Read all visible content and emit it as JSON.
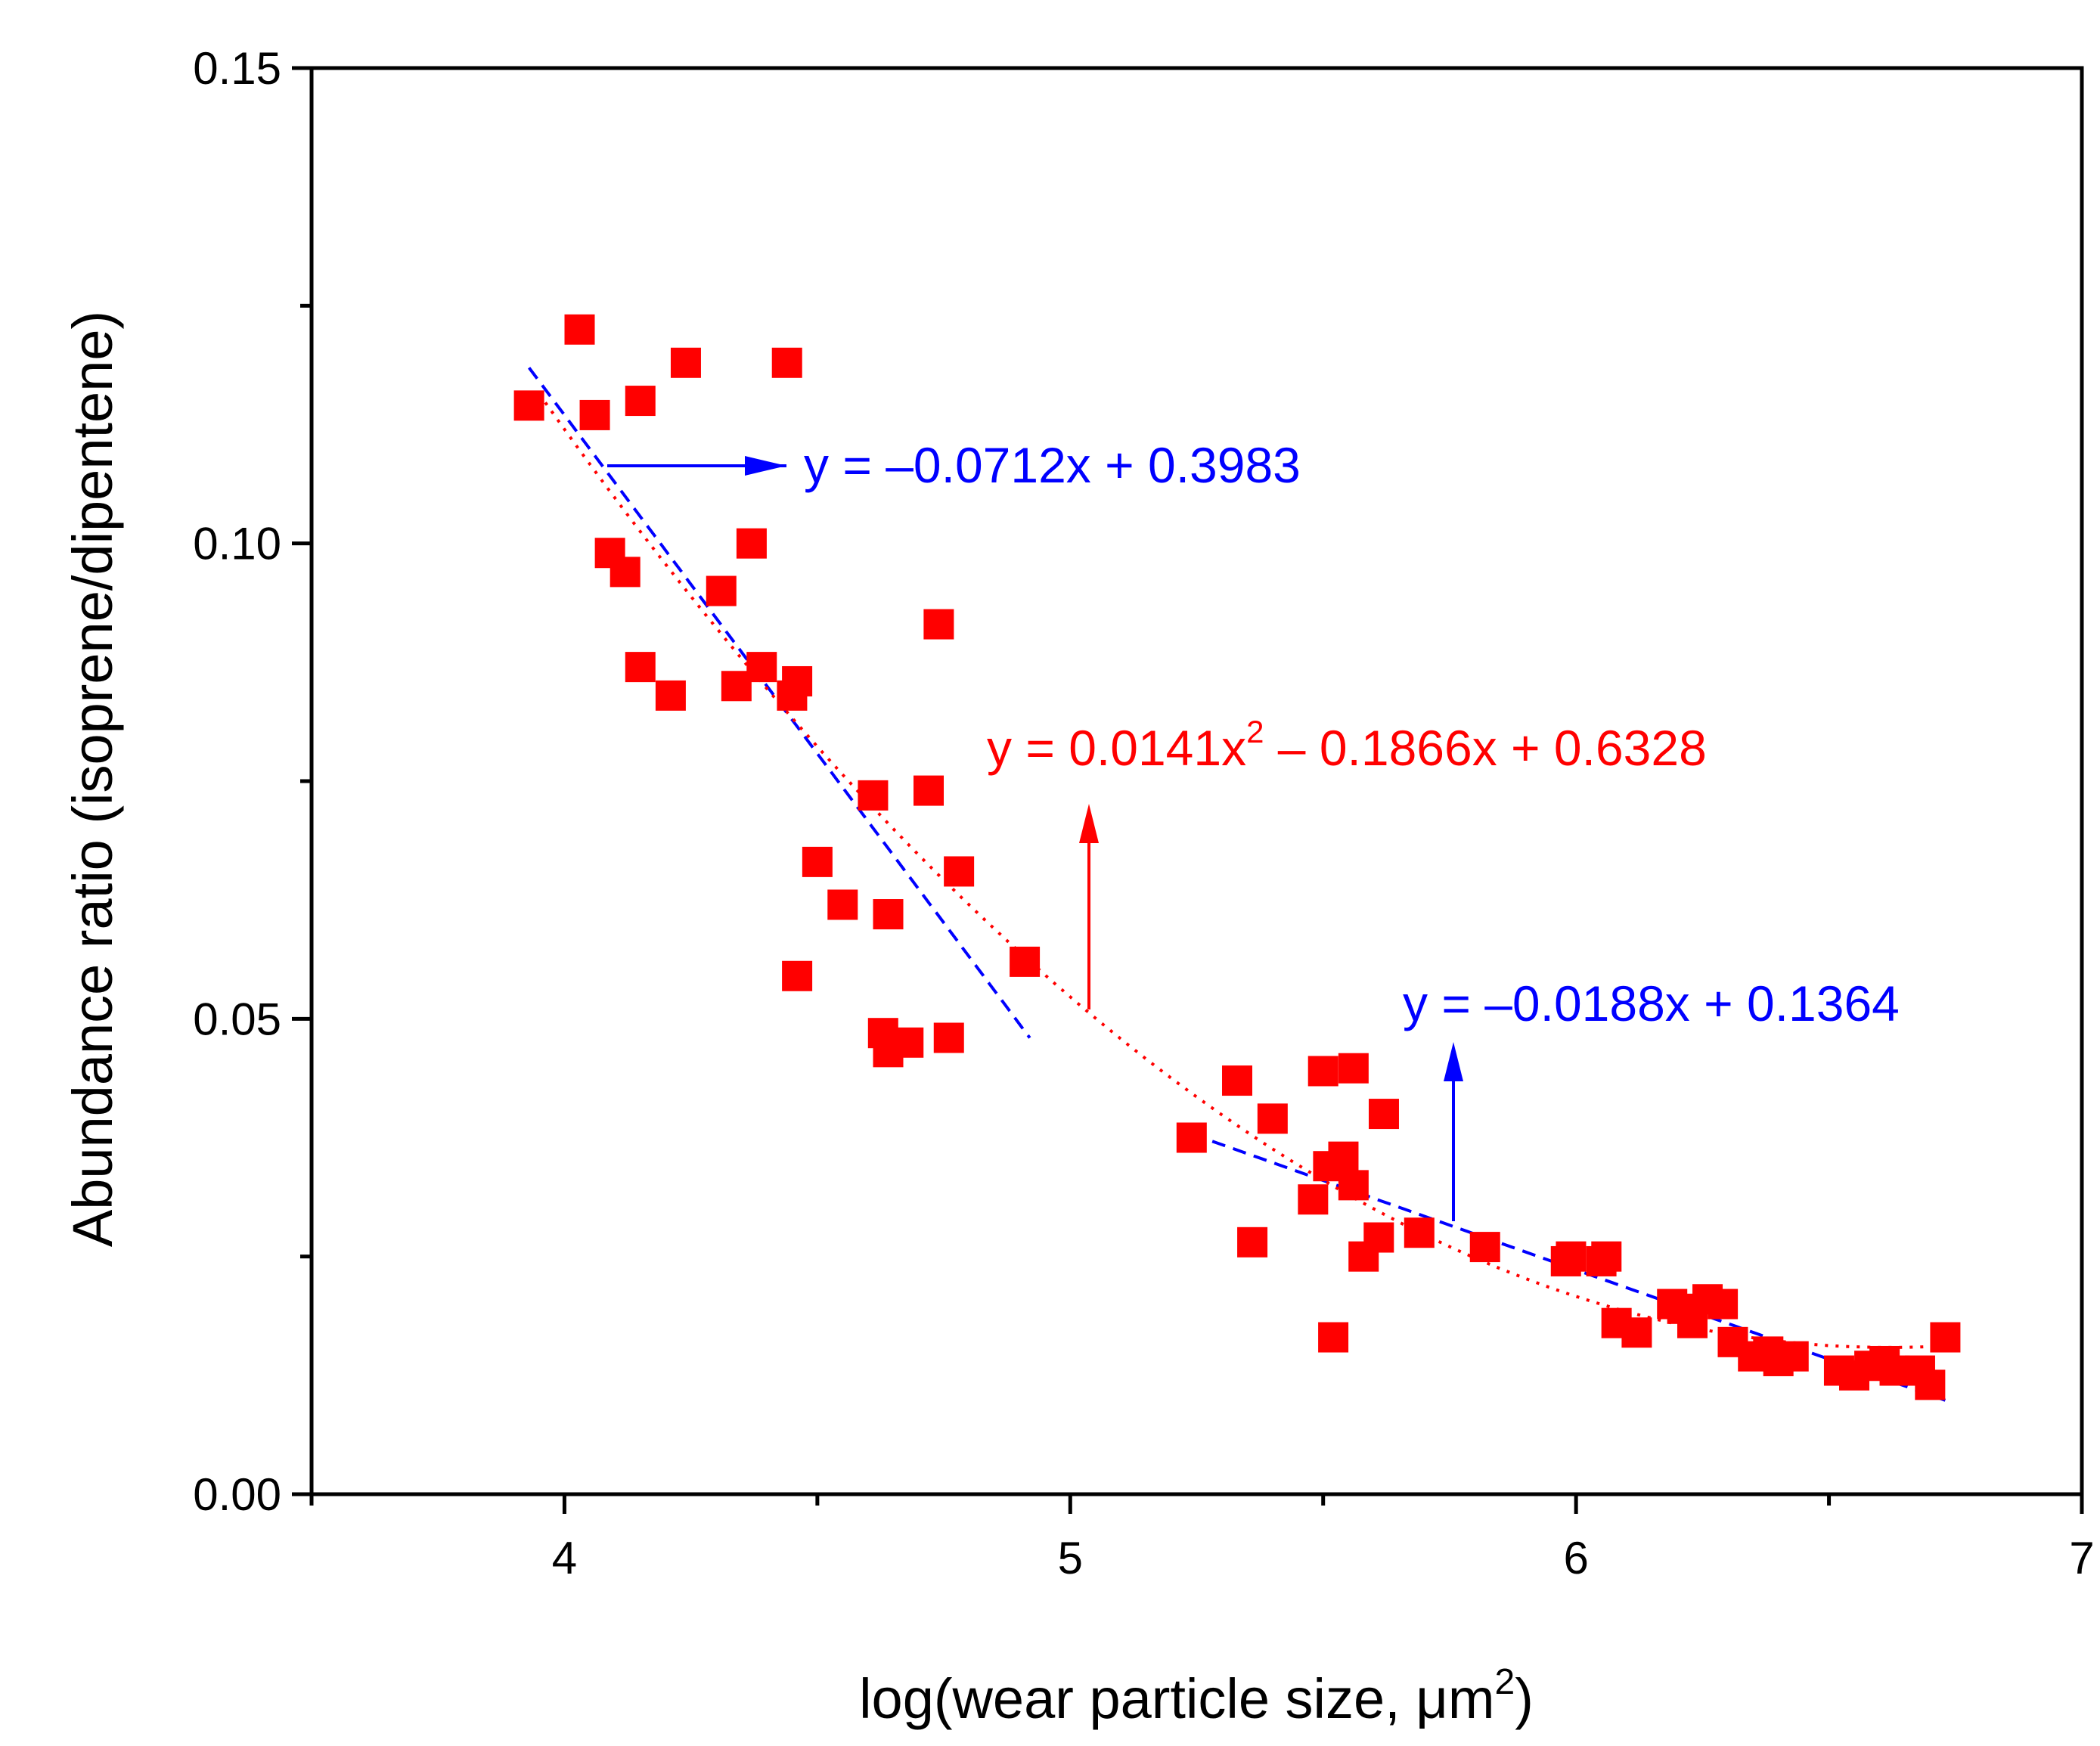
{
  "chart_data": {
    "type": "scatter",
    "title": "",
    "xlabel": "log(wear particle size, μm",
    "xlabel_sup": "2",
    "xlabel_close": ")",
    "ylabel": "Abundance ratio (isoprene/dipentene)",
    "xlim": [
      3.5,
      7
    ],
    "ylim": [
      0,
      0.15
    ],
    "x_ticks": [
      {
        "value": 4,
        "label": "4"
      },
      {
        "value": 5,
        "label": "5"
      },
      {
        "value": 6,
        "label": "6"
      },
      {
        "value": 7,
        "label": "7"
      }
    ],
    "x_minor_ticks": [
      3.5,
      4.5,
      5.5,
      6.5
    ],
    "y_ticks": [
      {
        "value": 0,
        "label": "0.00"
      },
      {
        "value": 0.05,
        "label": "0.05"
      },
      {
        "value": 0.1,
        "label": "0.10"
      },
      {
        "value": 0.15,
        "label": "0.15"
      }
    ],
    "y_minor_ticks": [
      0.025,
      0.075,
      0.125
    ],
    "colors": {
      "points": "#ff0000",
      "linear_fit": "#0000ff",
      "quadratic_fit": "#ff0000",
      "axes": "#000000"
    },
    "points": [
      {
        "x": 3.93,
        "y": 0.1145
      },
      {
        "x": 4.03,
        "y": 0.1225
      },
      {
        "x": 4.06,
        "y": 0.1135
      },
      {
        "x": 4.15,
        "y": 0.115
      },
      {
        "x": 4.24,
        "y": 0.119
      },
      {
        "x": 4.44,
        "y": 0.119
      },
      {
        "x": 4.09,
        "y": 0.099
      },
      {
        "x": 4.12,
        "y": 0.097
      },
      {
        "x": 4.15,
        "y": 0.087
      },
      {
        "x": 4.21,
        "y": 0.084
      },
      {
        "x": 4.31,
        "y": 0.095
      },
      {
        "x": 4.37,
        "y": 0.1
      },
      {
        "x": 4.34,
        "y": 0.085
      },
      {
        "x": 4.39,
        "y": 0.087
      },
      {
        "x": 4.45,
        "y": 0.084
      },
      {
        "x": 4.46,
        "y": 0.0855
      },
      {
        "x": 4.74,
        "y": 0.0915
      },
      {
        "x": 4.61,
        "y": 0.0735
      },
      {
        "x": 4.72,
        "y": 0.074
      },
      {
        "x": 4.5,
        "y": 0.0665
      },
      {
        "x": 4.55,
        "y": 0.062
      },
      {
        "x": 4.64,
        "y": 0.061
      },
      {
        "x": 4.78,
        "y": 0.0655
      },
      {
        "x": 4.46,
        "y": 0.0545
      },
      {
        "x": 4.63,
        "y": 0.0485
      },
      {
        "x": 4.64,
        "y": 0.0465
      },
      {
        "x": 4.68,
        "y": 0.0475
      },
      {
        "x": 4.76,
        "y": 0.048
      },
      {
        "x": 4.91,
        "y": 0.056
      },
      {
        "x": 5.24,
        "y": 0.0375
      },
      {
        "x": 5.33,
        "y": 0.0435
      },
      {
        "x": 5.4,
        "y": 0.0395
      },
      {
        "x": 5.36,
        "y": 0.0265
      },
      {
        "x": 5.48,
        "y": 0.031
      },
      {
        "x": 5.51,
        "y": 0.0345
      },
      {
        "x": 5.54,
        "y": 0.0355
      },
      {
        "x": 5.5,
        "y": 0.0445
      },
      {
        "x": 5.56,
        "y": 0.0448
      },
      {
        "x": 5.56,
        "y": 0.0325
      },
      {
        "x": 5.58,
        "y": 0.025
      },
      {
        "x": 5.61,
        "y": 0.027
      },
      {
        "x": 5.62,
        "y": 0.04
      },
      {
        "x": 5.52,
        "y": 0.0165
      },
      {
        "x": 5.69,
        "y": 0.0275
      },
      {
        "x": 5.82,
        "y": 0.026
      },
      {
        "x": 5.98,
        "y": 0.0245
      },
      {
        "x": 5.99,
        "y": 0.025
      },
      {
        "x": 6.05,
        "y": 0.0245
      },
      {
        "x": 6.06,
        "y": 0.025
      },
      {
        "x": 6.08,
        "y": 0.018
      },
      {
        "x": 6.12,
        "y": 0.017
      },
      {
        "x": 6.19,
        "y": 0.02
      },
      {
        "x": 6.21,
        "y": 0.0195
      },
      {
        "x": 6.23,
        "y": 0.018
      },
      {
        "x": 6.26,
        "y": 0.0205
      },
      {
        "x": 6.29,
        "y": 0.02
      },
      {
        "x": 6.31,
        "y": 0.016
      },
      {
        "x": 6.35,
        "y": 0.0145
      },
      {
        "x": 6.38,
        "y": 0.015
      },
      {
        "x": 6.4,
        "y": 0.014
      },
      {
        "x": 6.43,
        "y": 0.0145
      },
      {
        "x": 6.52,
        "y": 0.013
      },
      {
        "x": 6.55,
        "y": 0.0125
      },
      {
        "x": 6.58,
        "y": 0.0135
      },
      {
        "x": 6.61,
        "y": 0.014
      },
      {
        "x": 6.63,
        "y": 0.013
      },
      {
        "x": 6.68,
        "y": 0.013
      },
      {
        "x": 6.7,
        "y": 0.0115
      },
      {
        "x": 6.73,
        "y": 0.0165
      }
    ],
    "fits": [
      {
        "name": "linear-fit-low",
        "style": "dashed",
        "color": "#0000ff",
        "slope": -0.0712,
        "intercept": 0.3983,
        "x_range": [
          3.93,
          4.92
        ]
      },
      {
        "name": "linear-fit-high",
        "style": "dashed",
        "color": "#0000ff",
        "slope": -0.0188,
        "intercept": 0.1364,
        "x_range": [
          5.24,
          6.73
        ]
      },
      {
        "name": "quadratic-fit",
        "style": "dotted",
        "color": "#ff0000",
        "coefficients": [
          0.0141,
          -0.1866,
          0.6328
        ],
        "x_range": [
          3.95,
          6.73
        ]
      }
    ],
    "annotations": {
      "eq1": {
        "text": "y = –0.0712x + 0.3983",
        "color": "#0000ff"
      },
      "eq2": {
        "text_before_sup": "y = 0.0141x",
        "sup": "2",
        "text_after_sup": " – 0.1866x + 0.6328",
        "color": "#ff0000"
      },
      "eq3": {
        "text": "y = –0.0188x + 0.1364",
        "color": "#0000ff"
      }
    }
  }
}
